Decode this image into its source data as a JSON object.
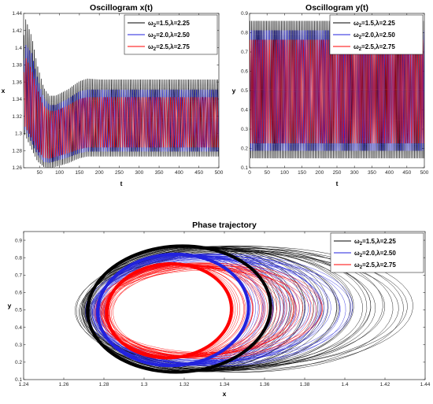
{
  "chart_data": [
    {
      "type": "line",
      "title": "Oscillogram x(t)",
      "xlabel": "t",
      "ylabel": "x",
      "xlim": [
        10,
        500
      ],
      "ylim": [
        1.26,
        1.44
      ],
      "xticks": [
        50,
        100,
        150,
        200,
        250,
        300,
        350,
        400,
        450,
        500
      ],
      "yticks": [
        1.26,
        1.28,
        1.3,
        1.32,
        1.34,
        1.36,
        1.38,
        1.4,
        1.42,
        1.44
      ],
      "legend_position": "top-right",
      "series": [
        {
          "name": "ω2=1.5,λ=2.25",
          "color": "#000000",
          "envelope": {
            "t": [
              10,
              15,
              30,
              45,
              60,
              75,
              90,
              120,
              150,
              170,
              200,
              300,
              500
            ],
            "upper": [
              1.41,
              1.435,
              1.415,
              1.38,
              1.355,
              1.345,
              1.345,
              1.352,
              1.362,
              1.365,
              1.364,
              1.364,
              1.364
            ],
            "lower": [
              1.3,
              1.295,
              1.28,
              1.266,
              1.26,
              1.258,
              1.26,
              1.264,
              1.27,
              1.272,
              1.272,
              1.272,
              1.272
            ]
          }
        },
        {
          "name": "ω2=2.0,λ=2.50",
          "color": "#2222dd",
          "envelope": {
            "t": [
              10,
              15,
              30,
              45,
              60,
              75,
              90,
              120,
              150,
              170,
              200,
              300,
              500
            ],
            "upper": [
              1.38,
              1.405,
              1.395,
              1.365,
              1.343,
              1.334,
              1.334,
              1.341,
              1.35,
              1.352,
              1.352,
              1.352,
              1.352
            ],
            "lower": [
              1.305,
              1.302,
              1.288,
              1.274,
              1.266,
              1.265,
              1.267,
              1.271,
              1.276,
              1.278,
              1.278,
              1.278,
              1.278
            ]
          }
        },
        {
          "name": "ω2=2.5,λ=2.75",
          "color": "#ff0000",
          "envelope": {
            "t": [
              10,
              15,
              30,
              45,
              60,
              75,
              90,
              120,
              150,
              170,
              200,
              300,
              500
            ],
            "upper": [
              1.365,
              1.39,
              1.375,
              1.352,
              1.333,
              1.327,
              1.327,
              1.333,
              1.341,
              1.343,
              1.343,
              1.343,
              1.343
            ],
            "lower": [
              1.31,
              1.306,
              1.294,
              1.28,
              1.271,
              1.27,
              1.272,
              1.276,
              1.281,
              1.283,
              1.283,
              1.283,
              1.283
            ]
          }
        }
      ]
    },
    {
      "type": "line",
      "title": "Oscillogram y(t)",
      "xlabel": "t",
      "ylabel": "y",
      "xlim": [
        0,
        500
      ],
      "ylim": [
        0.1,
        0.9
      ],
      "xticks": [
        0,
        50,
        100,
        150,
        200,
        250,
        300,
        350,
        400,
        450,
        500
      ],
      "yticks": [
        0.1,
        0.2,
        0.3,
        0.4,
        0.5,
        0.6,
        0.7,
        0.8,
        0.9
      ],
      "legend_position": "top-right",
      "series": [
        {
          "name": "ω2=1.5,λ=2.25",
          "color": "#000000",
          "envelope": {
            "upper": 0.87,
            "lower": 0.14
          }
        },
        {
          "name": "ω2=2.0,λ=2.50",
          "color": "#2222dd",
          "envelope": {
            "upper": 0.82,
            "lower": 0.18
          }
        },
        {
          "name": "ω2=2.5,λ=2.75",
          "color": "#ff0000",
          "envelope": {
            "upper": 0.77,
            "lower": 0.22
          }
        }
      ]
    },
    {
      "type": "line",
      "title": "Phase trajectory",
      "xlabel": "x",
      "ylabel": "y",
      "xlim": [
        1.24,
        1.44
      ],
      "ylim": [
        0.1,
        0.95
      ],
      "xticks": [
        1.24,
        1.26,
        1.28,
        1.3,
        1.32,
        1.34,
        1.36,
        1.38,
        1.4,
        1.42,
        1.44
      ],
      "yticks": [
        0.1,
        0.2,
        0.3,
        0.4,
        0.5,
        0.6,
        0.7,
        0.8,
        0.9
      ],
      "legend_position": "top-right",
      "series": [
        {
          "name": "ω2=1.5,λ=2.25",
          "color": "#000000",
          "limit_cycle": {
            "cx": 1.3175,
            "cy": 0.505,
            "rx": 0.0455,
            "ry": 0.362
          },
          "transient_max_x": 1.435
        },
        {
          "name": "ω2=2.0,λ=2.50",
          "color": "#2222dd",
          "limit_cycle": {
            "cx": 1.3145,
            "cy": 0.5,
            "rx": 0.0375,
            "ry": 0.32
          },
          "transient_max_x": 1.405
        },
        {
          "name": "ω2=2.5,λ=2.75",
          "color": "#ff0000",
          "limit_cycle": {
            "cx": 1.3125,
            "cy": 0.495,
            "rx": 0.031,
            "ry": 0.27
          },
          "transient_max_x": 1.39
        }
      ]
    }
  ]
}
